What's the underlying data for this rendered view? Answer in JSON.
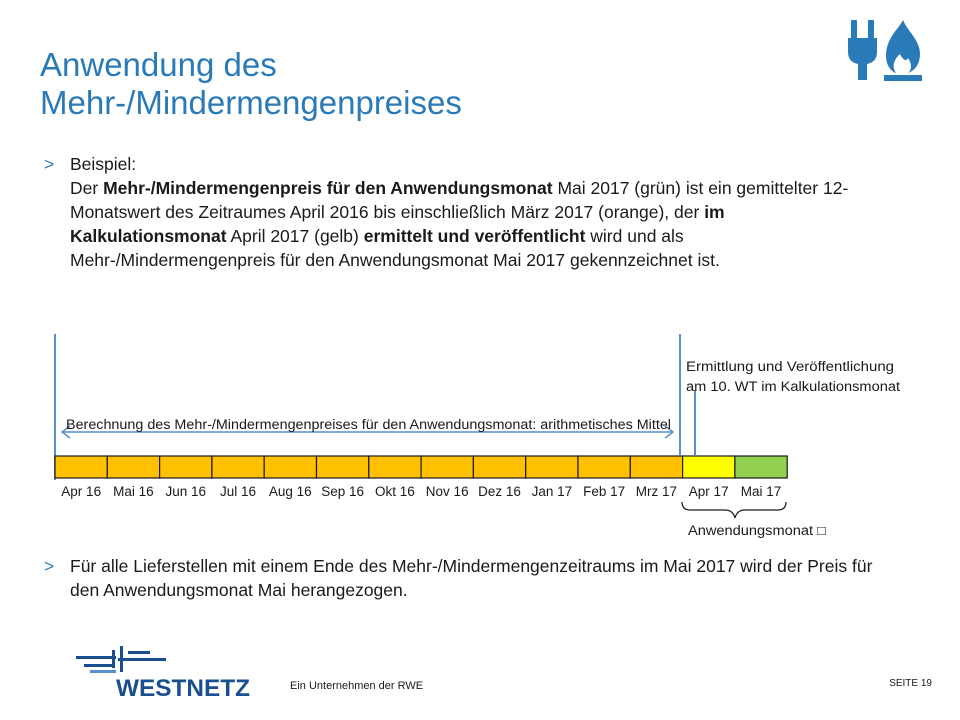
{
  "title": {
    "line1": "Anwendung des",
    "line2": "Mehr-/Mindermengenpreises"
  },
  "colors": {
    "accent": "#2a7ab8",
    "orange": "#ffc000",
    "yellow": "#ffff00",
    "green": "#92d050",
    "logo_blue": "#1a4f8f"
  },
  "bullet_marker": ">",
  "bullet1": {
    "label": "Beispiel:",
    "s1": "Der ",
    "s2": "Mehr-/Mindermengenpreis für den Anwendungsmonat",
    "s3": " Mai 2017 (grün) ist ein gemittelter 12-Monatswert des Zeitraumes April 2016 bis einschließlich März 2017 (orange), der ",
    "s4": "im Kalkulationsmonat",
    "s5": " April 2017 (gelb) ",
    "s6": "ermittelt und veröffentlicht",
    "s7": " wird und als Mehr-/Mindermengenpreis für den Anwendungsmonat Mai 2017 gekennzeichnet ist."
  },
  "bullet2": {
    "text": "Für alle Lieferstellen mit einem Ende des Mehr-/Mindermengenzeitraums im Mai 2017 wird der Preis für den Anwendungsmonat Mai herangezogen."
  },
  "timeline": {
    "calc_label": "Berechnung des Mehr-/Mindermengenpreises für den Anwendungsmonat: arithmetisches Mittel",
    "pub_label_line1": "Ermittlung und Veröffentlichung",
    "pub_label_line2": "am 10. WT im Kalkulationsmonat",
    "apply_label": "Anwendungsmonat □",
    "months": [
      "Apr 16",
      "Mai 16",
      "Jun 16",
      "Jul 16",
      "Aug 16",
      "Sep 16",
      "Okt 16",
      "Nov 16",
      "Dez 16",
      "Jan 17",
      "Feb 17",
      "Mrz 17",
      "Apr 17",
      "Mai 17"
    ]
  },
  "footer": {
    "logo_text": "WESTNETZ",
    "tagline": "Ein Unternehmen der RWE",
    "page": "SEITE 19"
  }
}
